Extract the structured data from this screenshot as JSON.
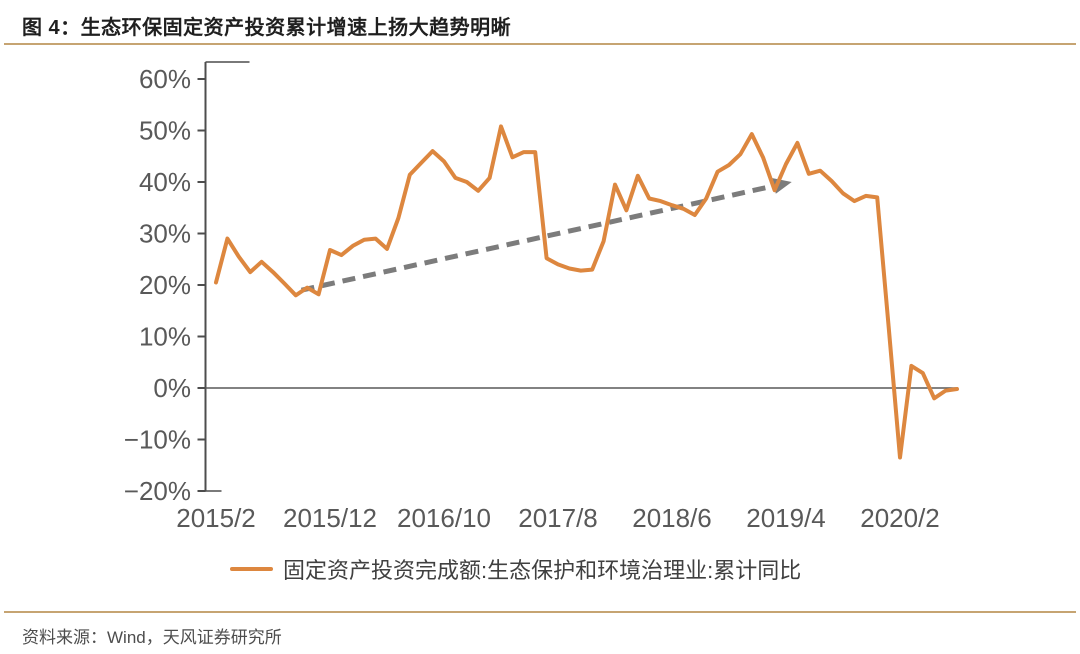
{
  "header": {
    "title": "图 4：生态环保固定资产投资累计增速上扬大趋势明晰"
  },
  "legend": {
    "label": "固定资产投资完成额:生态保护和环境治理业:累计同比"
  },
  "footer": {
    "source": "资料来源：Wind，天风证券研究所"
  },
  "colors": {
    "line": "#dd873f",
    "trend_arrow": "#7c7c7c",
    "axis": "#4d4d4d",
    "zero_line": "#595959",
    "tick_label": "#595959",
    "separator": "#c6a472",
    "title_text": "#1f1f1f",
    "source_text": "#4d4d4d"
  },
  "chart_data": {
    "type": "line",
    "title": "",
    "series_name": "固定资产投资完成额:生态保护和环境治理业:累计同比",
    "x": [
      "2015/2",
      "2015/3",
      "2015/4",
      "2015/5",
      "2015/6",
      "2015/7",
      "2015/8",
      "2015/9",
      "2015/10",
      "2015/11",
      "2015/12",
      "2016/1",
      "2016/2",
      "2016/3",
      "2016/4",
      "2016/5",
      "2016/6",
      "2016/7",
      "2016/8",
      "2016/9",
      "2016/10",
      "2016/11",
      "2016/12",
      "2017/1",
      "2017/2",
      "2017/3",
      "2017/4",
      "2017/5",
      "2017/6",
      "2017/7",
      "2017/8",
      "2017/9",
      "2017/10",
      "2017/11",
      "2017/12",
      "2018/1",
      "2018/2",
      "2018/3",
      "2018/4",
      "2018/5",
      "2018/6",
      "2018/7",
      "2018/8",
      "2018/9",
      "2018/10",
      "2018/11",
      "2018/12",
      "2019/1",
      "2019/2",
      "2019/3",
      "2019/4",
      "2019/5",
      "2019/6",
      "2019/7",
      "2019/8",
      "2019/9",
      "2019/10",
      "2019/11",
      "2019/12",
      "2020/1",
      "2020/2",
      "2020/3",
      "2020/4",
      "2020/5",
      "2020/6",
      "2020/7"
    ],
    "values": [
      20.5,
      29.0,
      25.5,
      22.5,
      24.5,
      22.5,
      20.3,
      18.0,
      19.5,
      18.2,
      26.8,
      25.8,
      27.6,
      28.8,
      29.0,
      27.0,
      33.0,
      41.4,
      43.7,
      46.0,
      44.0,
      40.8,
      40.0,
      38.3,
      40.8,
      50.8,
      44.8,
      45.8,
      45.8,
      25.2,
      24.0,
      23.2,
      22.8,
      23.0,
      28.5,
      39.5,
      34.5,
      41.2,
      36.8,
      36.3,
      35.5,
      34.8,
      33.6,
      36.8,
      42.0,
      43.3,
      45.4,
      49.3,
      44.7,
      38.4,
      43.5,
      47.6,
      41.6,
      42.2,
      40.2,
      37.8,
      36.3,
      37.3,
      37.0,
      12.0,
      -13.5,
      4.3,
      2.9,
      -2.0,
      -0.5,
      -0.2
    ],
    "unit": "%",
    "x_tick_positions": [
      0,
      10,
      20,
      30,
      40,
      50,
      60
    ],
    "x_tick_labels": [
      "2015/2",
      "2015/12",
      "2016/10",
      "2017/8",
      "2018/6",
      "2019/4",
      "2020/2"
    ],
    "y_ticks": [
      60,
      50,
      40,
      30,
      20,
      10,
      0,
      -10,
      -20
    ],
    "y_tick_labels": [
      "60%",
      "50%",
      "40%",
      "30%",
      "20%",
      "10%",
      "0%",
      "−10%",
      "−20%"
    ],
    "ylim": [
      -20,
      60
    ],
    "grid": false,
    "zero_line": true,
    "legend_position": "bottom",
    "trend_arrow": {
      "style": "dashed",
      "from": {
        "index": 7.5,
        "value": 19.0
      },
      "to": {
        "index": 50.5,
        "value": 40.0
      }
    }
  }
}
